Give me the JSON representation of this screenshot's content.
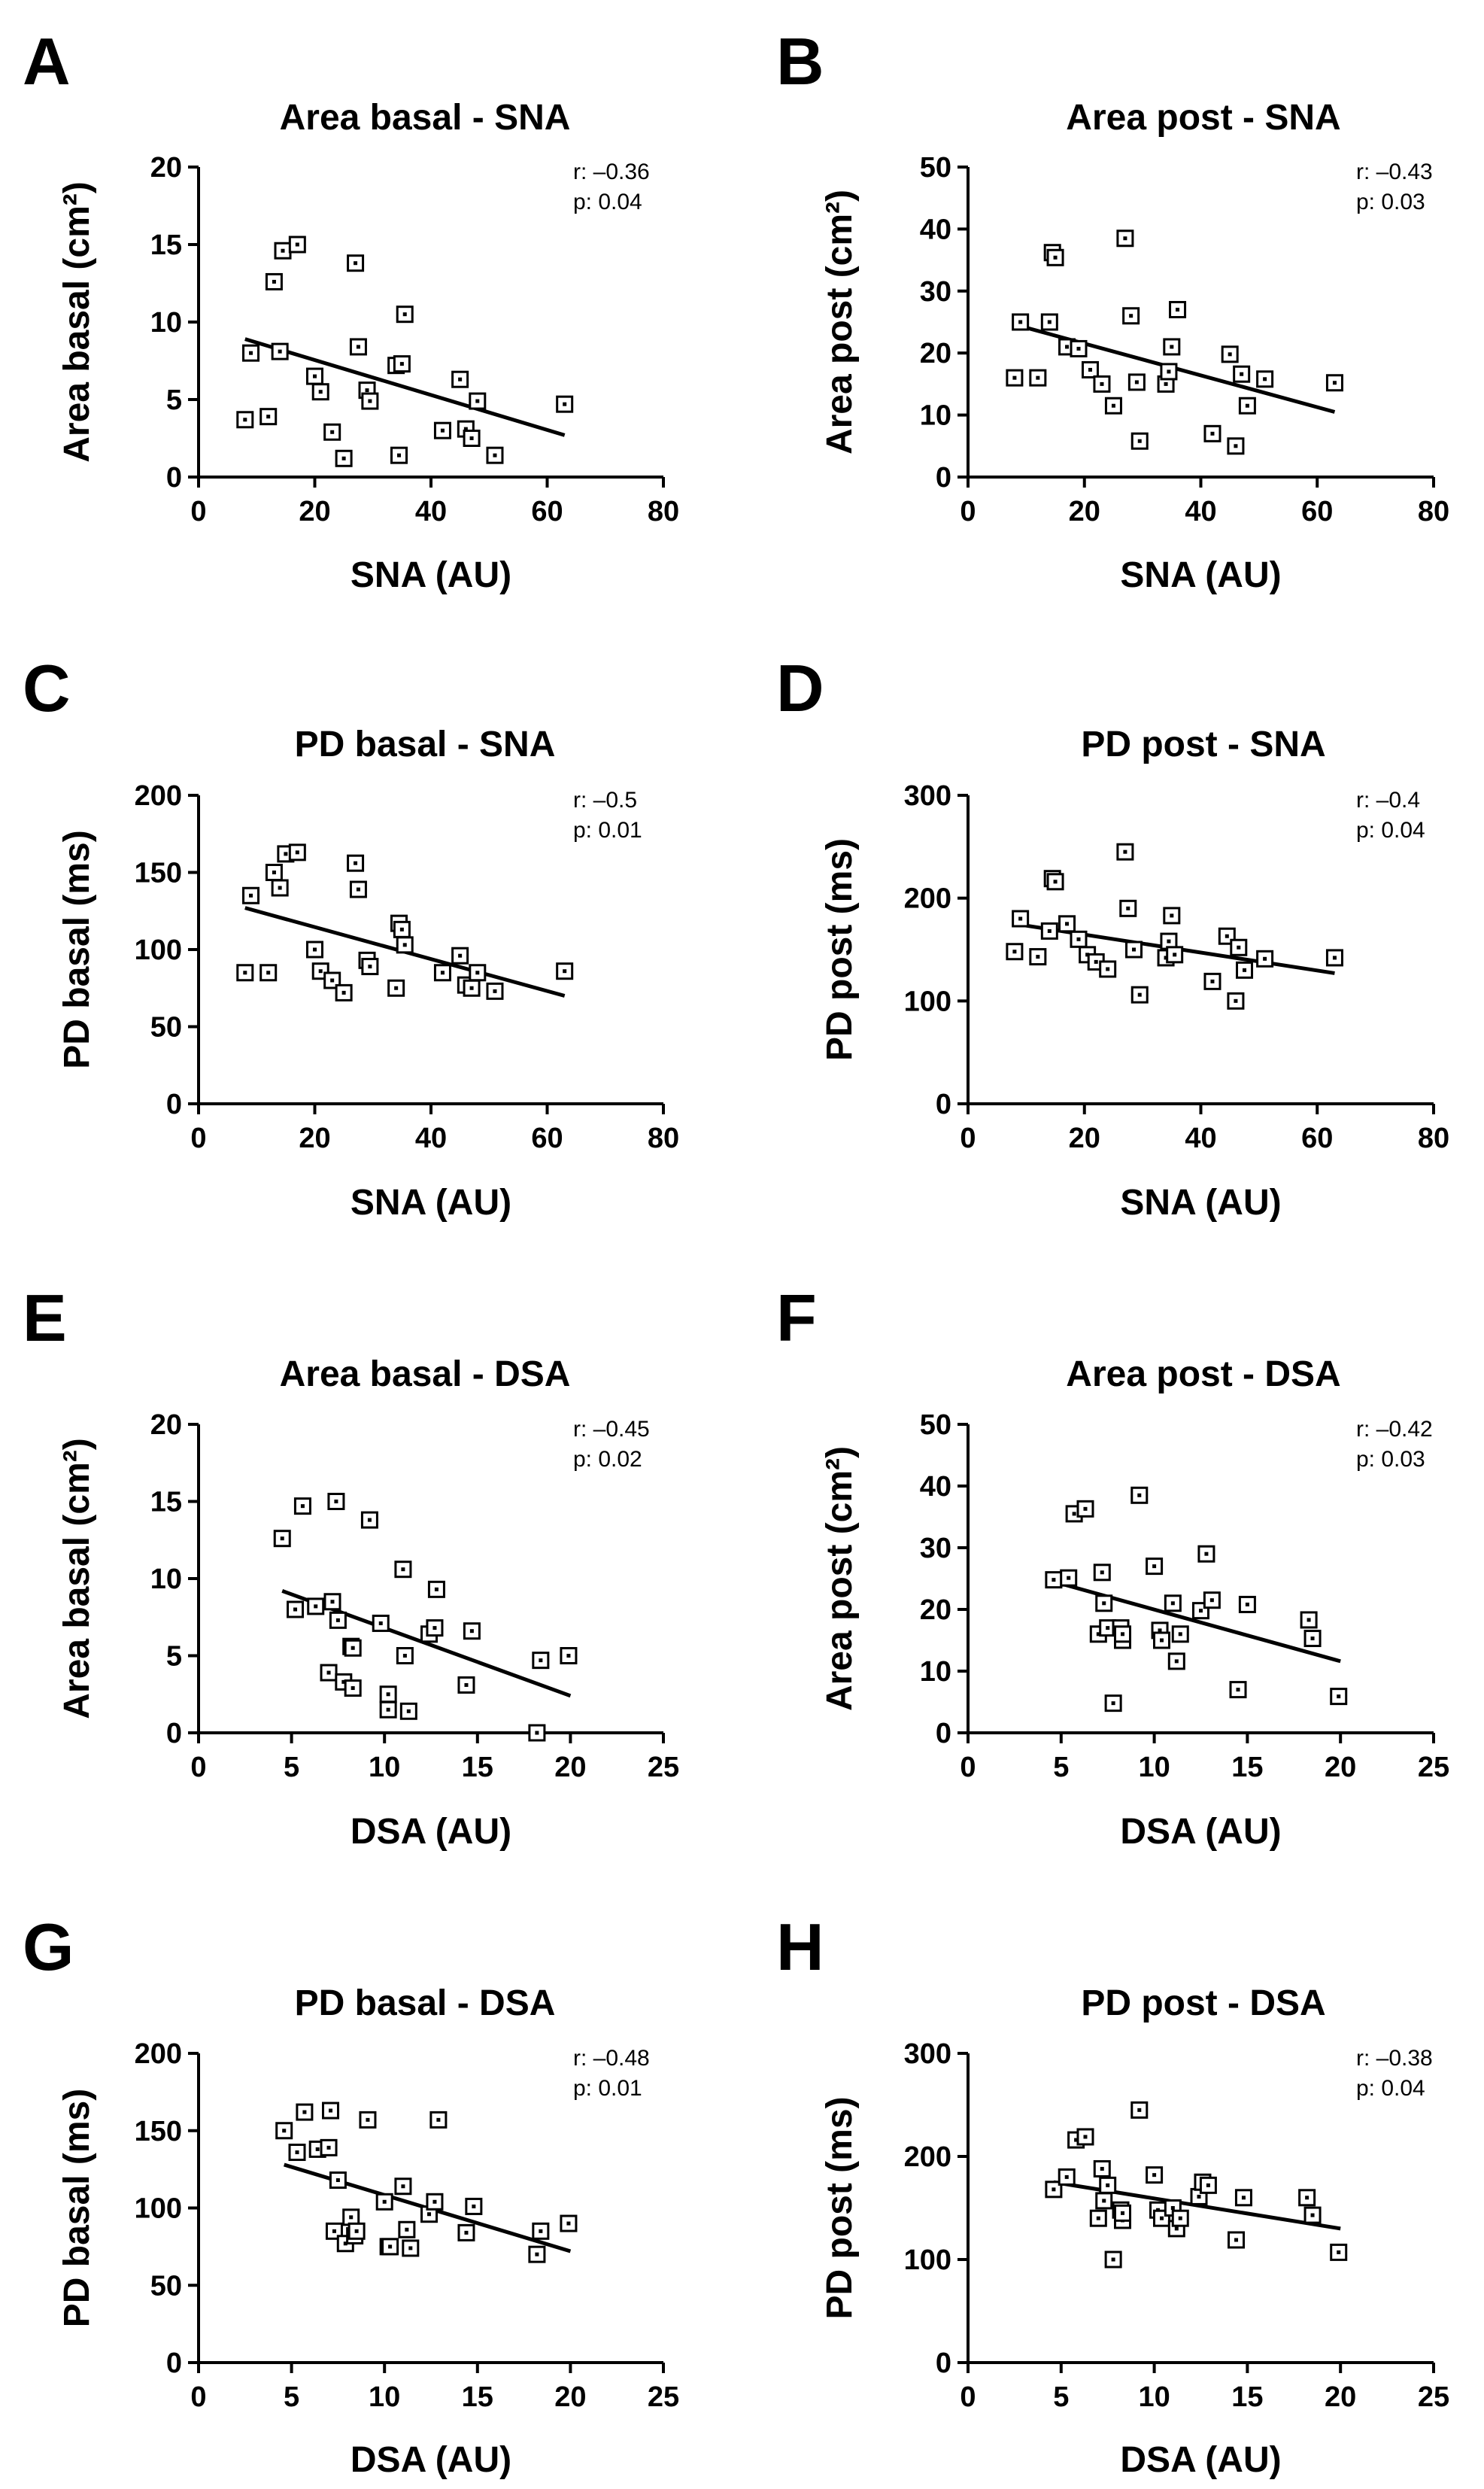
{
  "figure": {
    "panel_letters": [
      "A",
      "B",
      "C",
      "D",
      "E",
      "F",
      "G",
      "H"
    ]
  },
  "chart_data": [
    {
      "type": "scatter",
      "letter": "A",
      "title": "Area basal - SNA",
      "xlabel": "SNA (AU)",
      "ylabel": "Area basal (cm²)",
      "xlim": [
        0,
        80
      ],
      "ylim": [
        0,
        20
      ],
      "xticks": [
        0,
        20,
        40,
        60,
        80
      ],
      "yticks": [
        0,
        5,
        10,
        15,
        20
      ],
      "stats": {
        "r": "r: –0.36",
        "p": "p: 0.04"
      },
      "points": [
        [
          8,
          3.7
        ],
        [
          9,
          8
        ],
        [
          12,
          3.9
        ],
        [
          13,
          12.6
        ],
        [
          14,
          8.1
        ],
        [
          14.5,
          14.6
        ],
        [
          17,
          15
        ],
        [
          20,
          6.5
        ],
        [
          21,
          5.5
        ],
        [
          23,
          2.9
        ],
        [
          25,
          1.2
        ],
        [
          27,
          13.8
        ],
        [
          27.5,
          8.4
        ],
        [
          29,
          5.6
        ],
        [
          29.5,
          4.9
        ],
        [
          34,
          7.2
        ],
        [
          34.5,
          1.4
        ],
        [
          35,
          7.3
        ],
        [
          35.5,
          10.5
        ],
        [
          42,
          3
        ],
        [
          45,
          6.3
        ],
        [
          46,
          3.1
        ],
        [
          47,
          2.5
        ],
        [
          48,
          4.9
        ],
        [
          51,
          1.4
        ],
        [
          63,
          4.7
        ]
      ],
      "fit": [
        [
          8,
          8.9
        ],
        [
          63,
          2.7
        ]
      ]
    },
    {
      "type": "scatter",
      "letter": "B",
      "title": "Area post - SNA",
      "xlabel": "SNA (AU)",
      "ylabel": "Area post (cm²)",
      "xlim": [
        0,
        80
      ],
      "ylim": [
        0,
        50
      ],
      "xticks": [
        0,
        20,
        40,
        60,
        80
      ],
      "yticks": [
        0,
        10,
        20,
        30,
        40,
        50
      ],
      "stats": {
        "r": "r: –0.43",
        "p": "p: 0.03"
      },
      "points": [
        [
          8,
          16
        ],
        [
          9,
          25
        ],
        [
          12,
          16
        ],
        [
          14,
          25
        ],
        [
          14.5,
          36.2
        ],
        [
          15,
          35.4
        ],
        [
          17,
          21
        ],
        [
          19,
          20.7
        ],
        [
          21,
          17.3
        ],
        [
          23,
          15
        ],
        [
          25,
          11.5
        ],
        [
          27,
          38.5
        ],
        [
          28,
          26
        ],
        [
          29,
          15.3
        ],
        [
          29.5,
          5.8
        ],
        [
          34,
          15
        ],
        [
          34.5,
          17
        ],
        [
          35,
          21
        ],
        [
          36,
          27
        ],
        [
          42,
          7
        ],
        [
          45,
          19.8
        ],
        [
          46,
          5
        ],
        [
          47,
          16.6
        ],
        [
          48,
          11.5
        ],
        [
          51,
          15.8
        ],
        [
          63,
          15.2
        ]
      ],
      "fit": [
        [
          8,
          24.6
        ],
        [
          63,
          10.5
        ]
      ]
    },
    {
      "type": "scatter",
      "letter": "C",
      "title": "PD basal - SNA",
      "xlabel": "SNA (AU)",
      "ylabel": "PD basal (ms)",
      "xlim": [
        0,
        80
      ],
      "ylim": [
        0,
        200
      ],
      "xticks": [
        0,
        20,
        40,
        60,
        80
      ],
      "yticks": [
        0,
        50,
        100,
        150,
        200
      ],
      "stats": {
        "r": "r: –0.5",
        "p": "p: 0.01"
      },
      "points": [
        [
          8,
          85
        ],
        [
          9,
          135
        ],
        [
          12,
          85
        ],
        [
          13,
          150
        ],
        [
          14,
          140
        ],
        [
          15,
          162
        ],
        [
          17,
          163
        ],
        [
          20,
          100
        ],
        [
          21,
          86
        ],
        [
          23,
          80
        ],
        [
          25,
          72
        ],
        [
          27,
          156
        ],
        [
          27.5,
          139
        ],
        [
          29,
          93
        ],
        [
          29.5,
          89
        ],
        [
          34,
          75
        ],
        [
          34.5,
          117
        ],
        [
          35,
          113
        ],
        [
          35.5,
          103
        ],
        [
          42,
          85
        ],
        [
          45,
          96
        ],
        [
          46,
          77
        ],
        [
          47,
          75
        ],
        [
          48,
          85
        ],
        [
          51,
          73
        ],
        [
          63,
          86
        ]
      ],
      "fit": [
        [
          8,
          127
        ],
        [
          63,
          70
        ]
      ]
    },
    {
      "type": "scatter",
      "letter": "D",
      "title": "PD post - SNA",
      "xlabel": "SNA (AU)",
      "ylabel": "PD post (ms)",
      "xlim": [
        0,
        80
      ],
      "ylim": [
        0,
        300
      ],
      "xticks": [
        0,
        20,
        40,
        60,
        80
      ],
      "yticks": [
        0,
        100,
        200,
        300
      ],
      "stats": {
        "r": "r: –0.4",
        "p": "p: 0.04"
      },
      "points": [
        [
          8,
          148
        ],
        [
          9,
          180
        ],
        [
          12,
          143
        ],
        [
          14,
          168
        ],
        [
          14.5,
          219
        ],
        [
          15,
          216
        ],
        [
          17,
          175
        ],
        [
          19,
          160
        ],
        [
          20.5,
          145
        ],
        [
          22,
          138
        ],
        [
          24,
          131
        ],
        [
          27,
          245
        ],
        [
          27.5,
          190
        ],
        [
          28.5,
          150
        ],
        [
          29.5,
          106
        ],
        [
          34,
          142
        ],
        [
          34.5,
          158
        ],
        [
          35,
          183
        ],
        [
          35.5,
          145
        ],
        [
          42,
          119
        ],
        [
          44.5,
          163
        ],
        [
          46,
          100
        ],
        [
          46.5,
          152
        ],
        [
          47.5,
          130
        ],
        [
          51,
          141
        ],
        [
          63,
          142
        ]
      ],
      "fit": [
        [
          8,
          175
        ],
        [
          63,
          127
        ]
      ]
    },
    {
      "type": "scatter",
      "letter": "E",
      "title": "Area basal - DSA",
      "xlabel": "DSA (AU)",
      "ylabel": "Area basal (cm²)",
      "xlim": [
        0,
        25
      ],
      "ylim": [
        0,
        20
      ],
      "xticks": [
        0,
        5,
        10,
        15,
        20,
        25
      ],
      "yticks": [
        0,
        5,
        10,
        15,
        20
      ],
      "stats": {
        "r": "r: –0.45",
        "p": "p: 0.02"
      },
      "points": [
        [
          4.5,
          12.6
        ],
        [
          5.2,
          8
        ],
        [
          5.6,
          14.7
        ],
        [
          6.3,
          8.2
        ],
        [
          7,
          3.9
        ],
        [
          7.2,
          8.5
        ],
        [
          7.4,
          15
        ],
        [
          7.5,
          7.3
        ],
        [
          7.8,
          3.3
        ],
        [
          8.2,
          5.6
        ],
        [
          8.3,
          5.5
        ],
        [
          8.3,
          2.9
        ],
        [
          9.2,
          13.8
        ],
        [
          9.8,
          7.1
        ],
        [
          10.2,
          2.5
        ],
        [
          10.2,
          1.5
        ],
        [
          11,
          10.6
        ],
        [
          11.1,
          5
        ],
        [
          11.3,
          1.4
        ],
        [
          12.4,
          6.4
        ],
        [
          12.7,
          6.8
        ],
        [
          12.8,
          9.3
        ],
        [
          14.4,
          3.1
        ],
        [
          14.7,
          6.6
        ],
        [
          18.2,
          0
        ],
        [
          18.4,
          4.7
        ],
        [
          19.9,
          5
        ]
      ],
      "fit": [
        [
          4.5,
          9.2
        ],
        [
          20,
          2.4
        ]
      ]
    },
    {
      "type": "scatter",
      "letter": "F",
      "title": "Area post - DSA",
      "xlabel": "DSA (AU)",
      "ylabel": "Area post (cm²)",
      "xlim": [
        0,
        25
      ],
      "ylim": [
        0,
        50
      ],
      "xticks": [
        0,
        5,
        10,
        15,
        20,
        25
      ],
      "yticks": [
        0,
        10,
        20,
        30,
        40,
        50
      ],
      "stats": {
        "r": "r: –0.42",
        "p": "p: 0.03"
      },
      "points": [
        [
          4.6,
          24.8
        ],
        [
          5.4,
          25.1
        ],
        [
          5.7,
          35.5
        ],
        [
          6.3,
          36.3
        ],
        [
          7,
          16
        ],
        [
          7.2,
          26
        ],
        [
          7.3,
          21
        ],
        [
          7.5,
          17
        ],
        [
          7.8,
          4.8
        ],
        [
          8.2,
          17
        ],
        [
          8.3,
          15
        ],
        [
          8.3,
          16
        ],
        [
          9.2,
          38.5
        ],
        [
          10,
          27
        ],
        [
          10.3,
          16.6
        ],
        [
          10.4,
          15
        ],
        [
          11,
          21
        ],
        [
          11.2,
          11.6
        ],
        [
          11.4,
          16
        ],
        [
          12.5,
          19.8
        ],
        [
          12.8,
          29
        ],
        [
          13.1,
          21.5
        ],
        [
          14.5,
          7
        ],
        [
          15,
          20.8
        ],
        [
          18.3,
          18.3
        ],
        [
          18.5,
          15.3
        ],
        [
          19.9,
          5.9
        ]
      ],
      "fit": [
        [
          4.6,
          24.5
        ],
        [
          20,
          11.6
        ]
      ]
    },
    {
      "type": "scatter",
      "letter": "G",
      "title": "PD basal - DSA",
      "xlabel": "DSA (AU)",
      "ylabel": "PD basal (ms)",
      "xlim": [
        0,
        25
      ],
      "ylim": [
        0,
        200
      ],
      "xticks": [
        0,
        5,
        10,
        15,
        20,
        25
      ],
      "yticks": [
        0,
        50,
        100,
        150,
        200
      ],
      "stats": {
        "r": "r: –0.48",
        "p": "p: 0.01"
      },
      "points": [
        [
          4.6,
          150
        ],
        [
          5.3,
          136
        ],
        [
          5.7,
          162
        ],
        [
          6.4,
          138
        ],
        [
          7,
          139
        ],
        [
          7.1,
          163
        ],
        [
          7.3,
          85
        ],
        [
          7.5,
          118
        ],
        [
          7.9,
          77
        ],
        [
          8.2,
          94
        ],
        [
          8.4,
          82
        ],
        [
          8.5,
          85
        ],
        [
          9.1,
          157
        ],
        [
          10,
          104
        ],
        [
          10.2,
          75
        ],
        [
          10.3,
          75
        ],
        [
          11,
          114
        ],
        [
          11.2,
          86
        ],
        [
          11.4,
          74
        ],
        [
          12.4,
          96
        ],
        [
          12.7,
          104
        ],
        [
          12.9,
          157
        ],
        [
          14.4,
          84
        ],
        [
          14.8,
          101
        ],
        [
          18.2,
          70
        ],
        [
          18.4,
          85
        ],
        [
          19.9,
          90
        ]
      ],
      "fit": [
        [
          4.6,
          128
        ],
        [
          20,
          72
        ]
      ]
    },
    {
      "type": "scatter",
      "letter": "H",
      "title": "PD post - DSA",
      "xlabel": "DSA (AU)",
      "ylabel": "PD post (ms)",
      "xlim": [
        0,
        25
      ],
      "ylim": [
        0,
        300
      ],
      "xticks": [
        0,
        5,
        10,
        15,
        20,
        25
      ],
      "yticks": [
        0,
        100,
        200,
        300
      ],
      "stats": {
        "r": "r: –0.38",
        "p": "p: 0.04"
      },
      "points": [
        [
          4.6,
          168
        ],
        [
          5.3,
          180
        ],
        [
          5.8,
          216
        ],
        [
          6.3,
          219
        ],
        [
          7,
          140
        ],
        [
          7.2,
          188
        ],
        [
          7.3,
          157
        ],
        [
          7.5,
          172
        ],
        [
          7.8,
          100
        ],
        [
          8.2,
          148
        ],
        [
          8.3,
          138
        ],
        [
          8.3,
          145
        ],
        [
          9.2,
          245
        ],
        [
          10,
          182
        ],
        [
          10.2,
          148
        ],
        [
          10.4,
          140
        ],
        [
          11,
          150
        ],
        [
          11.2,
          130
        ],
        [
          11.4,
          140
        ],
        [
          12.4,
          161
        ],
        [
          12.6,
          175
        ],
        [
          12.9,
          172
        ],
        [
          14.4,
          119
        ],
        [
          14.8,
          160
        ],
        [
          18.2,
          160
        ],
        [
          18.5,
          143
        ],
        [
          19.9,
          107
        ]
      ],
      "fit": [
        [
          4.6,
          175
        ],
        [
          20,
          130
        ]
      ]
    }
  ]
}
